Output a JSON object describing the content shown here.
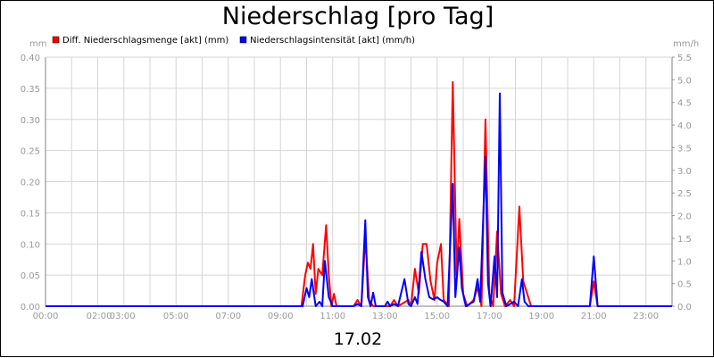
{
  "chart_data": {
    "type": "line",
    "title": "Niederschlag [pro Tag]",
    "date_label": "17.02",
    "y_left_unit": "mm",
    "y_right_unit": "mm/h",
    "y_left_range": [
      0,
      0.4
    ],
    "y_right_range": [
      0,
      5.5
    ],
    "y_left_ticks": [
      "0.00",
      "0.05",
      "0.10",
      "0.15",
      "0.20",
      "0.25",
      "0.30",
      "0.35",
      "0.40"
    ],
    "y_right_ticks": [
      "0.0",
      "0.5",
      "1.0",
      "1.5",
      "2.0",
      "2.5",
      "3.0",
      "3.5",
      "4.0",
      "4.5",
      "5.0",
      "5.5"
    ],
    "x_range_hours": [
      0,
      24
    ],
    "x_ticks": [
      "00:00",
      "02:00",
      "03:00",
      "05:00",
      "07:00",
      "09:00",
      "11:00",
      "13:00",
      "15:00",
      "17:00",
      "19:00",
      "21:00",
      "23:00"
    ],
    "grid": true,
    "legend_position": "top-left",
    "series": [
      {
        "name": "Diff. Niederschlagsmenge [akt] (mm)",
        "axis": "left",
        "color": "#ff0000",
        "points": [
          [
            0,
            0
          ],
          [
            9.8,
            0
          ],
          [
            9.95,
            0.05
          ],
          [
            10.05,
            0.07
          ],
          [
            10.15,
            0.06
          ],
          [
            10.25,
            0.1
          ],
          [
            10.35,
            0.02
          ],
          [
            10.45,
            0.06
          ],
          [
            10.6,
            0.05
          ],
          [
            10.75,
            0.13
          ],
          [
            10.85,
            0.05
          ],
          [
            10.95,
            0
          ],
          [
            11.05,
            0.02
          ],
          [
            11.15,
            0
          ],
          [
            11.8,
            0
          ],
          [
            11.95,
            0.01
          ],
          [
            12.1,
            0
          ],
          [
            12.25,
            0.11
          ],
          [
            12.4,
            0.01
          ],
          [
            12.55,
            0
          ],
          [
            13.2,
            0
          ],
          [
            13.35,
            0.01
          ],
          [
            13.5,
            0
          ],
          [
            13.9,
            0.01
          ],
          [
            14.0,
            0
          ],
          [
            14.15,
            0.06
          ],
          [
            14.3,
            0.02
          ],
          [
            14.45,
            0.1
          ],
          [
            14.6,
            0.1
          ],
          [
            14.75,
            0.04
          ],
          [
            14.9,
            0.01
          ],
          [
            15.0,
            0.07
          ],
          [
            15.15,
            0.1
          ],
          [
            15.25,
            0.01
          ],
          [
            15.45,
            0
          ],
          [
            15.6,
            0.36
          ],
          [
            15.75,
            0.05
          ],
          [
            15.85,
            0.14
          ],
          [
            16.0,
            0.02
          ],
          [
            16.15,
            0
          ],
          [
            16.4,
            0.01
          ],
          [
            16.55,
            0.03
          ],
          [
            16.7,
            0
          ],
          [
            16.85,
            0.3
          ],
          [
            17.0,
            0.02
          ],
          [
            17.15,
            0
          ],
          [
            17.3,
            0.12
          ],
          [
            17.45,
            0.02
          ],
          [
            17.6,
            0
          ],
          [
            17.8,
            0.01
          ],
          [
            17.95,
            0
          ],
          [
            18.15,
            0.16
          ],
          [
            18.3,
            0.04
          ],
          [
            18.45,
            0.02
          ],
          [
            18.6,
            0
          ],
          [
            20.85,
            0
          ],
          [
            21.0,
            0.04
          ],
          [
            21.15,
            0
          ],
          [
            24,
            0
          ]
        ]
      },
      {
        "name": "Niederschlagsintensität [akt] (mm/h)",
        "axis": "right",
        "color": "#0000ff",
        "points": [
          [
            0,
            0
          ],
          [
            9.85,
            0
          ],
          [
            10.0,
            0.4
          ],
          [
            10.1,
            0.2
          ],
          [
            10.2,
            0.6
          ],
          [
            10.35,
            0
          ],
          [
            10.5,
            0.1
          ],
          [
            10.6,
            0
          ],
          [
            10.7,
            1.0
          ],
          [
            10.85,
            0.2
          ],
          [
            11.0,
            0
          ],
          [
            11.5,
            0
          ],
          [
            11.8,
            0
          ],
          [
            11.95,
            0.05
          ],
          [
            12.1,
            0
          ],
          [
            12.25,
            1.9
          ],
          [
            12.35,
            0.2
          ],
          [
            12.45,
            0
          ],
          [
            12.55,
            0.3
          ],
          [
            12.65,
            0
          ],
          [
            13.0,
            0
          ],
          [
            13.1,
            0.1
          ],
          [
            13.2,
            0
          ],
          [
            13.35,
            0.05
          ],
          [
            13.5,
            0
          ],
          [
            13.75,
            0.6
          ],
          [
            13.9,
            0.05
          ],
          [
            14.0,
            0
          ],
          [
            14.15,
            0.2
          ],
          [
            14.25,
            0.05
          ],
          [
            14.4,
            1.2
          ],
          [
            14.55,
            0.6
          ],
          [
            14.7,
            0.2
          ],
          [
            14.85,
            0.15
          ],
          [
            15.0,
            0.2
          ],
          [
            15.1,
            0.15
          ],
          [
            15.25,
            0.1
          ],
          [
            15.4,
            0
          ],
          [
            15.6,
            2.7
          ],
          [
            15.7,
            0.2
          ],
          [
            15.85,
            1.3
          ],
          [
            15.95,
            0.4
          ],
          [
            16.1,
            0
          ],
          [
            16.4,
            0.1
          ],
          [
            16.55,
            0.6
          ],
          [
            16.65,
            0.1
          ],
          [
            16.85,
            3.3
          ],
          [
            16.95,
            0.5
          ],
          [
            17.05,
            0
          ],
          [
            17.2,
            1.1
          ],
          [
            17.3,
            0.2
          ],
          [
            17.4,
            4.7
          ],
          [
            17.5,
            0.3
          ],
          [
            17.65,
            0
          ],
          [
            17.95,
            0.1
          ],
          [
            18.1,
            0
          ],
          [
            18.25,
            0.6
          ],
          [
            18.35,
            0.1
          ],
          [
            18.5,
            0
          ],
          [
            20.85,
            0
          ],
          [
            21.0,
            1.1
          ],
          [
            21.15,
            0
          ],
          [
            24,
            0
          ]
        ]
      }
    ]
  }
}
